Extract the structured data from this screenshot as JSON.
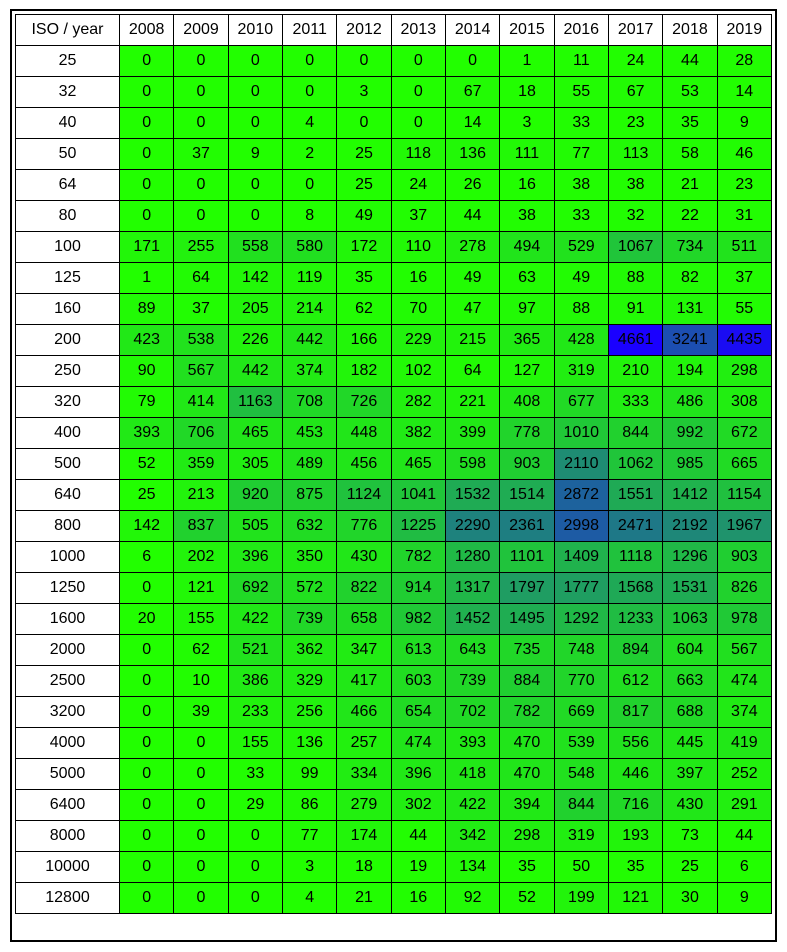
{
  "chart_data": {
    "type": "heatmap",
    "corner_label": "ISO / year",
    "years": [
      "2008",
      "2009",
      "2010",
      "2011",
      "2012",
      "2013",
      "2014",
      "2015",
      "2016",
      "2017",
      "2018",
      "2019"
    ],
    "iso": [
      "25",
      "32",
      "40",
      "50",
      "64",
      "80",
      "100",
      "125",
      "160",
      "200",
      "250",
      "320",
      "400",
      "500",
      "640",
      "800",
      "1000",
      "1250",
      "1600",
      "2000",
      "2500",
      "3200",
      "4000",
      "5000",
      "6400",
      "8000",
      "10000",
      "12800"
    ],
    "values": [
      [
        0,
        0,
        0,
        0,
        0,
        0,
        0,
        1,
        11,
        24,
        44,
        28
      ],
      [
        0,
        0,
        0,
        0,
        3,
        0,
        67,
        18,
        55,
        67,
        53,
        14
      ],
      [
        0,
        0,
        0,
        4,
        0,
        0,
        14,
        3,
        33,
        23,
        35,
        9
      ],
      [
        0,
        37,
        9,
        2,
        25,
        118,
        136,
        111,
        77,
        113,
        58,
        46
      ],
      [
        0,
        0,
        0,
        0,
        25,
        24,
        26,
        16,
        38,
        38,
        21,
        23
      ],
      [
        0,
        0,
        0,
        8,
        49,
        37,
        44,
        38,
        33,
        32,
        22,
        31
      ],
      [
        171,
        255,
        558,
        580,
        172,
        110,
        278,
        494,
        529,
        1067,
        734,
        511
      ],
      [
        1,
        64,
        142,
        119,
        35,
        16,
        49,
        63,
        49,
        88,
        82,
        37
      ],
      [
        89,
        37,
        205,
        214,
        62,
        70,
        47,
        97,
        88,
        91,
        131,
        55
      ],
      [
        423,
        538,
        226,
        442,
        166,
        229,
        215,
        365,
        428,
        4661,
        3241,
        4435
      ],
      [
        90,
        567,
        442,
        374,
        182,
        102,
        64,
        127,
        319,
        210,
        194,
        298
      ],
      [
        79,
        414,
        1163,
        708,
        726,
        282,
        221,
        408,
        677,
        333,
        486,
        308
      ],
      [
        393,
        706,
        465,
        453,
        448,
        382,
        399,
        778,
        1010,
        844,
        992,
        672
      ],
      [
        52,
        359,
        305,
        489,
        456,
        465,
        598,
        903,
        2110,
        1062,
        985,
        665
      ],
      [
        25,
        213,
        920,
        875,
        1124,
        1041,
        1532,
        1514,
        2872,
        1551,
        1412,
        1154
      ],
      [
        142,
        837,
        505,
        632,
        776,
        1225,
        2290,
        2361,
        2998,
        2471,
        2192,
        1967
      ],
      [
        6,
        202,
        396,
        350,
        430,
        782,
        1280,
        1101,
        1409,
        1118,
        1296,
        903
      ],
      [
        0,
        121,
        692,
        572,
        822,
        914,
        1317,
        1797,
        1777,
        1568,
        1531,
        826
      ],
      [
        20,
        155,
        422,
        739,
        658,
        982,
        1452,
        1495,
        1292,
        1233,
        1063,
        978
      ],
      [
        0,
        62,
        521,
        362,
        347,
        613,
        643,
        735,
        748,
        894,
        604,
        567
      ],
      [
        0,
        10,
        386,
        329,
        417,
        603,
        739,
        884,
        770,
        612,
        663,
        474
      ],
      [
        0,
        39,
        233,
        256,
        466,
        654,
        702,
        782,
        669,
        817,
        688,
        374
      ],
      [
        0,
        0,
        155,
        136,
        257,
        474,
        393,
        470,
        539,
        556,
        445,
        419
      ],
      [
        0,
        0,
        33,
        99,
        334,
        396,
        418,
        470,
        548,
        446,
        397,
        252
      ],
      [
        0,
        0,
        29,
        86,
        279,
        302,
        422,
        394,
        844,
        716,
        430,
        291
      ],
      [
        0,
        0,
        0,
        77,
        174,
        44,
        342,
        298,
        319,
        193,
        73,
        44
      ],
      [
        0,
        0,
        0,
        3,
        18,
        19,
        134,
        35,
        50,
        35,
        25,
        6
      ],
      [
        0,
        0,
        0,
        4,
        21,
        16,
        92,
        52,
        199,
        121,
        30,
        9
      ]
    ],
    "color_scale": {
      "low": "#22ff00",
      "high": "#1a00ff",
      "min": 0,
      "max": 4661
    }
  }
}
